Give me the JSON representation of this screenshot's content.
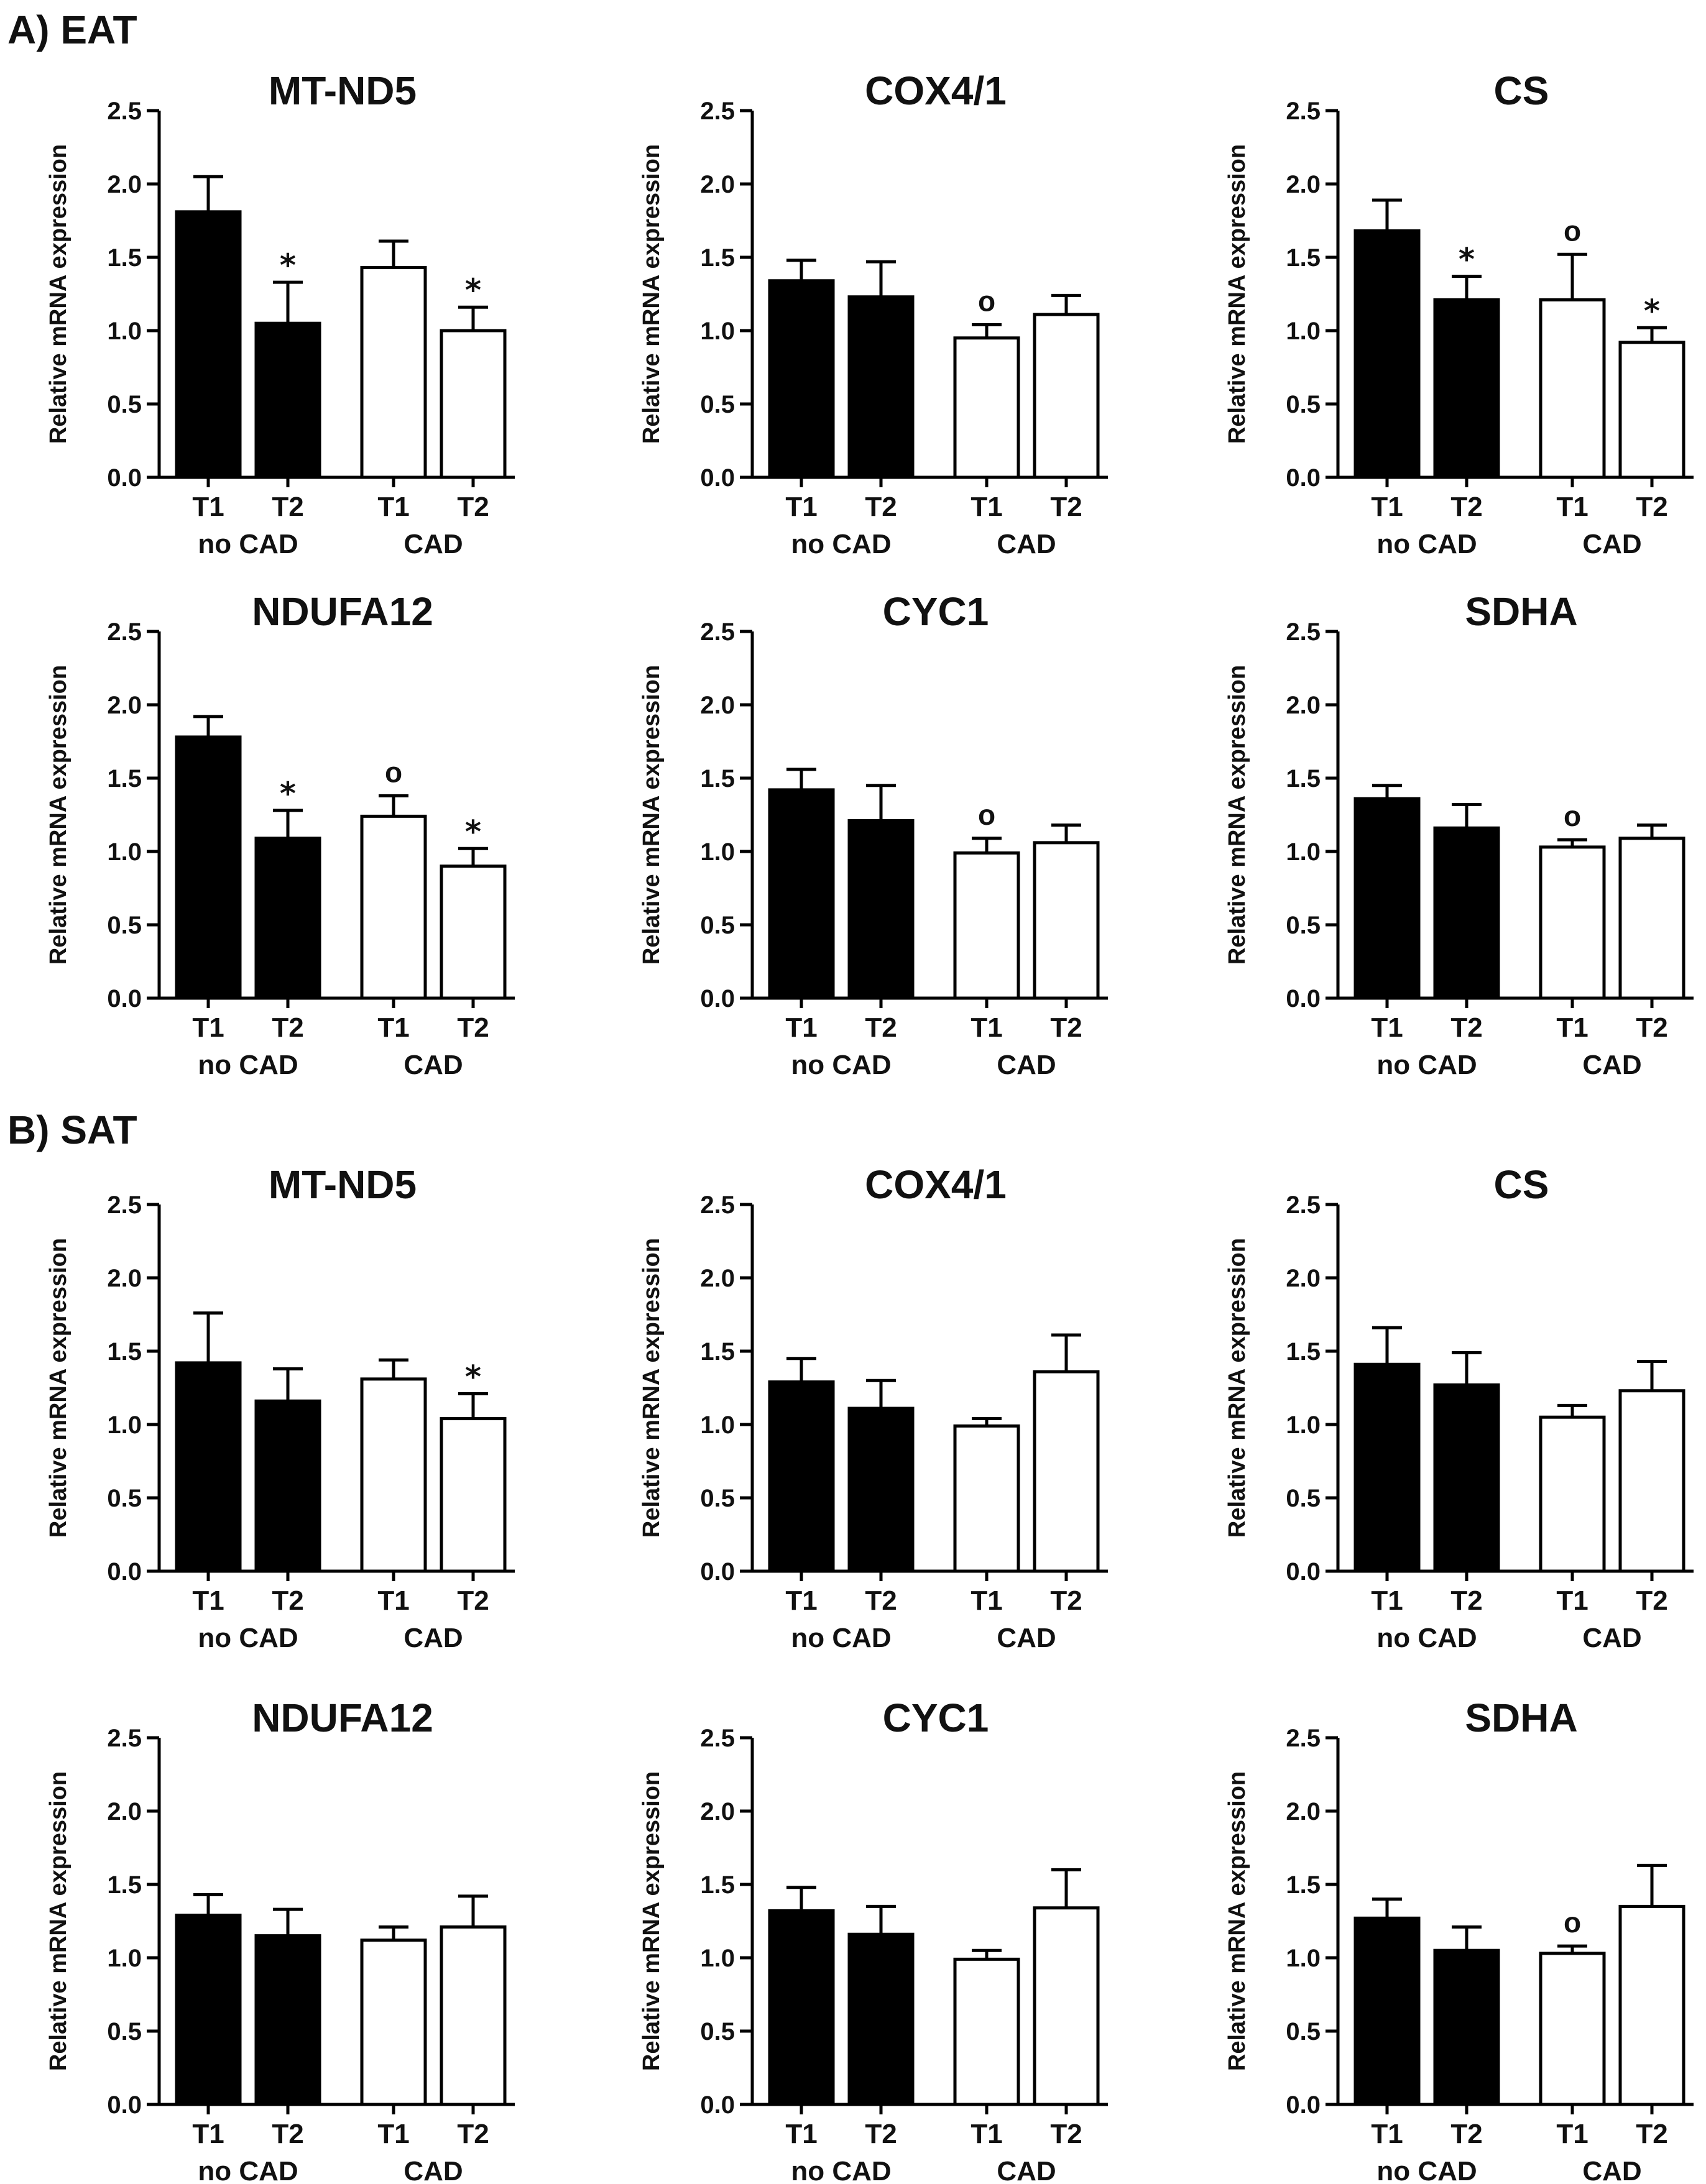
{
  "sections": [
    {
      "label": "A) EAT"
    },
    {
      "label": "B) SAT"
    }
  ],
  "common": {
    "ylabel": "Relative mRNA expression",
    "yticks": [
      "0.0",
      "0.5",
      "1.0",
      "1.5",
      "2.0",
      "2.5"
    ],
    "bar_labels": [
      "T1",
      "T2",
      "T1",
      "T2"
    ],
    "group_labels": [
      "no CAD",
      "CAD"
    ],
    "colors": {
      "noCAD": "#000000",
      "CAD": "#ffffff",
      "stroke": "#000000"
    }
  },
  "chart_data": [
    {
      "type": "bar",
      "section": "A) EAT",
      "title": "MT-ND5",
      "ylabel": "Relative mRNA expression",
      "ylim": [
        0,
        2.5
      ],
      "categories": [
        "T1",
        "T2",
        "T1",
        "T2"
      ],
      "groups": [
        "no CAD",
        "no CAD",
        "CAD",
        "CAD"
      ],
      "values": [
        1.81,
        1.05,
        1.43,
        1.0
      ],
      "errors": [
        0.24,
        0.28,
        0.18,
        0.16
      ],
      "marks": [
        "",
        "*",
        "",
        "*"
      ]
    },
    {
      "type": "bar",
      "section": "A) EAT",
      "title": "COX4/1",
      "ylabel": "Relative mRNA expression",
      "ylim": [
        0,
        2.5
      ],
      "categories": [
        "T1",
        "T2",
        "T1",
        "T2"
      ],
      "groups": [
        "no CAD",
        "no CAD",
        "CAD",
        "CAD"
      ],
      "values": [
        1.34,
        1.23,
        0.95,
        1.11
      ],
      "errors": [
        0.14,
        0.24,
        0.09,
        0.13
      ],
      "marks": [
        "",
        "",
        "o",
        ""
      ]
    },
    {
      "type": "bar",
      "section": "A) EAT",
      "title": "CS",
      "ylabel": "Relative mRNA expression",
      "ylim": [
        0,
        2.5
      ],
      "categories": [
        "T1",
        "T2",
        "T1",
        "T2"
      ],
      "groups": [
        "no CAD",
        "no CAD",
        "CAD",
        "CAD"
      ],
      "values": [
        1.68,
        1.21,
        1.21,
        0.92
      ],
      "errors": [
        0.21,
        0.16,
        0.31,
        0.1
      ],
      "marks": [
        "",
        "*",
        "o",
        "*"
      ]
    },
    {
      "type": "bar",
      "section": "A) EAT",
      "title": "NDUFA12",
      "ylabel": "Relative mRNA expression",
      "ylim": [
        0,
        2.5
      ],
      "categories": [
        "T1",
        "T2",
        "T1",
        "T2"
      ],
      "groups": [
        "no CAD",
        "no CAD",
        "CAD",
        "CAD"
      ],
      "values": [
        1.78,
        1.09,
        1.24,
        0.9
      ],
      "errors": [
        0.14,
        0.19,
        0.14,
        0.12
      ],
      "marks": [
        "",
        "*",
        "o",
        "*"
      ]
    },
    {
      "type": "bar",
      "section": "A) EAT",
      "title": "CYC1",
      "ylabel": "Relative mRNA expression",
      "ylim": [
        0,
        2.5
      ],
      "categories": [
        "T1",
        "T2",
        "T1",
        "T2"
      ],
      "groups": [
        "no CAD",
        "no CAD",
        "CAD",
        "CAD"
      ],
      "values": [
        1.42,
        1.21,
        0.99,
        1.06
      ],
      "errors": [
        0.14,
        0.24,
        0.1,
        0.12
      ],
      "marks": [
        "",
        "",
        "o",
        ""
      ]
    },
    {
      "type": "bar",
      "section": "A) EAT",
      "title": "SDHA",
      "ylabel": "Relative mRNA expression",
      "ylim": [
        0,
        2.5
      ],
      "categories": [
        "T1",
        "T2",
        "T1",
        "T2"
      ],
      "groups": [
        "no CAD",
        "no CAD",
        "CAD",
        "CAD"
      ],
      "values": [
        1.36,
        1.16,
        1.03,
        1.09
      ],
      "errors": [
        0.09,
        0.16,
        0.05,
        0.09
      ],
      "marks": [
        "",
        "",
        "o",
        ""
      ]
    },
    {
      "type": "bar",
      "section": "B) SAT",
      "title": "MT-ND5",
      "ylabel": "Relative mRNA expression",
      "ylim": [
        0,
        2.5
      ],
      "categories": [
        "T1",
        "T2",
        "T1",
        "T2"
      ],
      "groups": [
        "no CAD",
        "no CAD",
        "CAD",
        "CAD"
      ],
      "values": [
        1.42,
        1.16,
        1.31,
        1.04
      ],
      "errors": [
        0.34,
        0.22,
        0.13,
        0.17
      ],
      "marks": [
        "",
        "",
        "",
        "*"
      ]
    },
    {
      "type": "bar",
      "section": "B) SAT",
      "title": "COX4/1",
      "ylabel": "Relative mRNA expression",
      "ylim": [
        0,
        2.5
      ],
      "categories": [
        "T1",
        "T2",
        "T1",
        "T2"
      ],
      "groups": [
        "no CAD",
        "no CAD",
        "CAD",
        "CAD"
      ],
      "values": [
        1.29,
        1.11,
        0.99,
        1.36
      ],
      "errors": [
        0.16,
        0.19,
        0.05,
        0.25
      ],
      "marks": [
        "",
        "",
        "",
        ""
      ]
    },
    {
      "type": "bar",
      "section": "B) SAT",
      "title": "CS",
      "ylabel": "Relative mRNA expression",
      "ylim": [
        0,
        2.5
      ],
      "categories": [
        "T1",
        "T2",
        "T1",
        "T2"
      ],
      "groups": [
        "no CAD",
        "no CAD",
        "CAD",
        "CAD"
      ],
      "values": [
        1.41,
        1.27,
        1.05,
        1.23
      ],
      "errors": [
        0.25,
        0.22,
        0.08,
        0.2
      ],
      "marks": [
        "",
        "",
        "",
        ""
      ]
    },
    {
      "type": "bar",
      "section": "B) SAT",
      "title": "NDUFA12",
      "ylabel": "Relative mRNA expression",
      "ylim": [
        0,
        2.5
      ],
      "categories": [
        "T1",
        "T2",
        "T1",
        "T2"
      ],
      "groups": [
        "no CAD",
        "no CAD",
        "CAD",
        "CAD"
      ],
      "values": [
        1.29,
        1.15,
        1.12,
        1.21
      ],
      "errors": [
        0.14,
        0.18,
        0.09,
        0.21
      ],
      "marks": [
        "",
        "",
        "",
        ""
      ]
    },
    {
      "type": "bar",
      "section": "B) SAT",
      "title": "CYC1",
      "ylabel": "Relative mRNA expression",
      "ylim": [
        0,
        2.5
      ],
      "categories": [
        "T1",
        "T2",
        "T1",
        "T2"
      ],
      "groups": [
        "no CAD",
        "no CAD",
        "CAD",
        "CAD"
      ],
      "values": [
        1.32,
        1.16,
        0.99,
        1.34
      ],
      "errors": [
        0.16,
        0.19,
        0.06,
        0.26
      ],
      "marks": [
        "",
        "",
        "",
        ""
      ]
    },
    {
      "type": "bar",
      "section": "B) SAT",
      "title": "SDHA",
      "ylabel": "Relative mRNA expression",
      "ylim": [
        0,
        2.5
      ],
      "categories": [
        "T1",
        "T2",
        "T1",
        "T2"
      ],
      "groups": [
        "no CAD",
        "no CAD",
        "CAD",
        "CAD"
      ],
      "values": [
        1.27,
        1.05,
        1.03,
        1.35
      ],
      "errors": [
        0.13,
        0.16,
        0.05,
        0.28
      ],
      "marks": [
        "",
        "",
        "o",
        ""
      ]
    }
  ]
}
